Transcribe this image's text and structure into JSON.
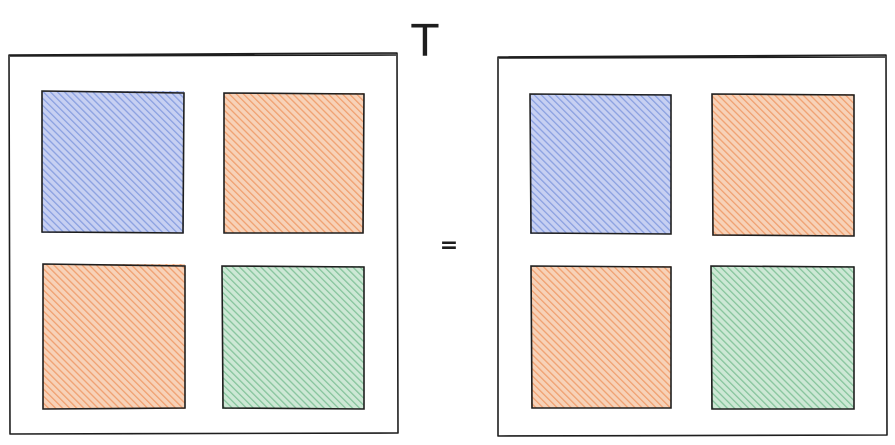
{
  "diagram": {
    "transpose_symbol": "T",
    "equals_symbol": "=",
    "colors": {
      "blue": "#8aa0e0",
      "orange": "#f0a070",
      "green": "#86c49c",
      "stroke": "#1e1e1e"
    },
    "left_matrix": {
      "blocks": [
        {
          "position": "top-left",
          "color": "blue"
        },
        {
          "position": "top-right",
          "color": "orange"
        },
        {
          "position": "bottom-left",
          "color": "orange"
        },
        {
          "position": "bottom-right",
          "color": "green"
        }
      ]
    },
    "right_matrix": {
      "blocks": [
        {
          "position": "top-left",
          "color": "blue"
        },
        {
          "position": "top-right",
          "color": "orange"
        },
        {
          "position": "bottom-left",
          "color": "orange"
        },
        {
          "position": "bottom-right",
          "color": "green"
        }
      ]
    }
  }
}
